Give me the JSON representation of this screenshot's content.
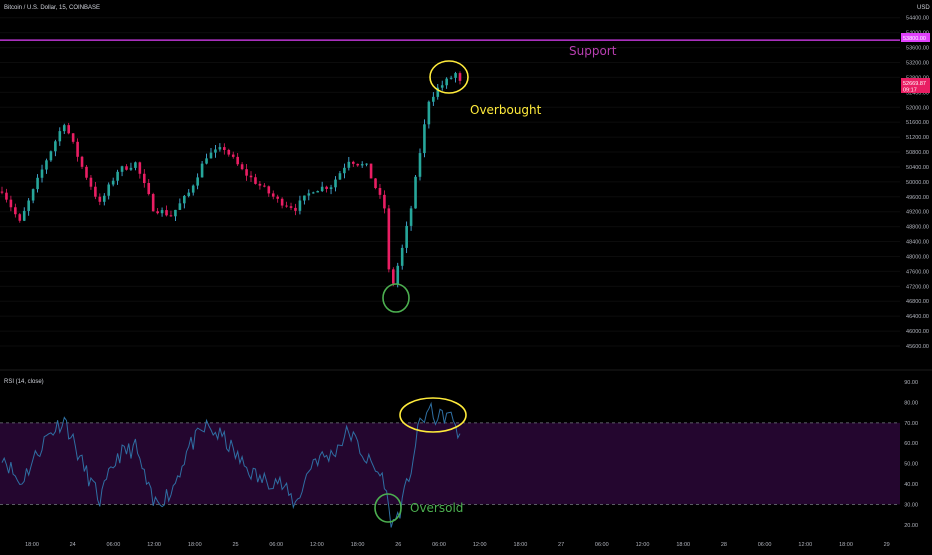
{
  "header": {
    "symbol_line": "Bitcoin / U.S. Dollar, 15, COINBASE",
    "currency": "USD"
  },
  "rsi_header": "RSI (14, close)",
  "colors": {
    "background": "#000000",
    "candle_up": "#26a69a",
    "candle_down": "#e91e63",
    "wick_up": "#4fc3f7",
    "support_line": "#e040fb",
    "price_badge": "#e91e63",
    "rsi_band": "#24062f",
    "rsi_line": "#2f6fa3",
    "overbought_marker": "#ffeb3b",
    "oversold_marker": "#4caf50"
  },
  "annotations": {
    "support": "Support",
    "overbought": "Overbought",
    "oversold": "Oversold"
  },
  "price_badges": {
    "support_price": "53800.00",
    "last_price": "52669.87",
    "countdown": "09:17"
  },
  "chart_data": [
    {
      "type": "candlestick",
      "title": "Bitcoin / U.S. Dollar, 15, COINBASE",
      "ylabel": "USD",
      "ylim": [
        45600,
        54500
      ],
      "y_ticks": [
        "54400.00",
        "54000.00",
        "53600.00",
        "53200.00",
        "52800.00",
        "52400.00",
        "52000.00",
        "51600.00",
        "51200.00",
        "50800.00",
        "50400.00",
        "50000.00",
        "49600.00",
        "49200.00",
        "48800.00",
        "48400.00",
        "48000.00",
        "47600.00",
        "47200.00",
        "46800.00",
        "46400.00",
        "46000.00",
        "45600.00"
      ],
      "x_ticks": [
        "18:00",
        "24",
        "06:00",
        "12:00",
        "18:00",
        "25",
        "06:00",
        "12:00",
        "18:00",
        "26",
        "06:00",
        "12:00",
        "18:00",
        "27",
        "06:00",
        "12:00",
        "18:00",
        "28",
        "06:00",
        "12:00",
        "18:00",
        "29"
      ],
      "support_level": 53800,
      "last_price": 52669.87,
      "close_path": [
        [
          0,
          49800
        ],
        [
          4,
          48900
        ],
        [
          10,
          50600
        ],
        [
          14,
          51600
        ],
        [
          18,
          50400
        ],
        [
          22,
          49400
        ],
        [
          26,
          50300
        ],
        [
          30,
          50500
        ],
        [
          34,
          49300
        ],
        [
          38,
          49100
        ],
        [
          42,
          49700
        ],
        [
          46,
          50700
        ],
        [
          50,
          50900
        ],
        [
          54,
          50300
        ],
        [
          58,
          49900
        ],
        [
          62,
          49500
        ],
        [
          66,
          49300
        ],
        [
          70,
          49800
        ],
        [
          74,
          49900
        ],
        [
          78,
          50600
        ],
        [
          82,
          50400
        ],
        [
          86,
          49300
        ],
        [
          87,
          47600
        ],
        [
          88,
          47300
        ],
        [
          90,
          48200
        ],
        [
          92,
          49300
        ],
        [
          94,
          50800
        ],
        [
          96,
          52200
        ],
        [
          98,
          52500
        ],
        [
          100,
          52700
        ],
        [
          102,
          52900
        ],
        [
          103,
          52650
        ]
      ]
    },
    {
      "type": "line",
      "title": "RSI (14, close)",
      "ylim": [
        14,
        92
      ],
      "y_ticks": [
        "90.00",
        "80.00",
        "70.00",
        "60.00",
        "50.00",
        "40.00",
        "30.00",
        "20.00"
      ],
      "upper_band": 70,
      "lower_band": 30,
      "rsi_path": [
        [
          0,
          55
        ],
        [
          4,
          40
        ],
        [
          10,
          63
        ],
        [
          14,
          72
        ],
        [
          18,
          50
        ],
        [
          22,
          32
        ],
        [
          26,
          54
        ],
        [
          30,
          58
        ],
        [
          34,
          30
        ],
        [
          38,
          36
        ],
        [
          42,
          58
        ],
        [
          46,
          68
        ],
        [
          50,
          62
        ],
        [
          54,
          50
        ],
        [
          58,
          42
        ],
        [
          62,
          42
        ],
        [
          66,
          30
        ],
        [
          70,
          52
        ],
        [
          74,
          54
        ],
        [
          78,
          66
        ],
        [
          82,
          52
        ],
        [
          86,
          42
        ],
        [
          87,
          26
        ],
        [
          88,
          20
        ],
        [
          90,
          30
        ],
        [
          92,
          48
        ],
        [
          94,
          70
        ],
        [
          96,
          76
        ],
        [
          98,
          72
        ],
        [
          100,
          74
        ],
        [
          102,
          70
        ],
        [
          103,
          61
        ]
      ]
    }
  ]
}
